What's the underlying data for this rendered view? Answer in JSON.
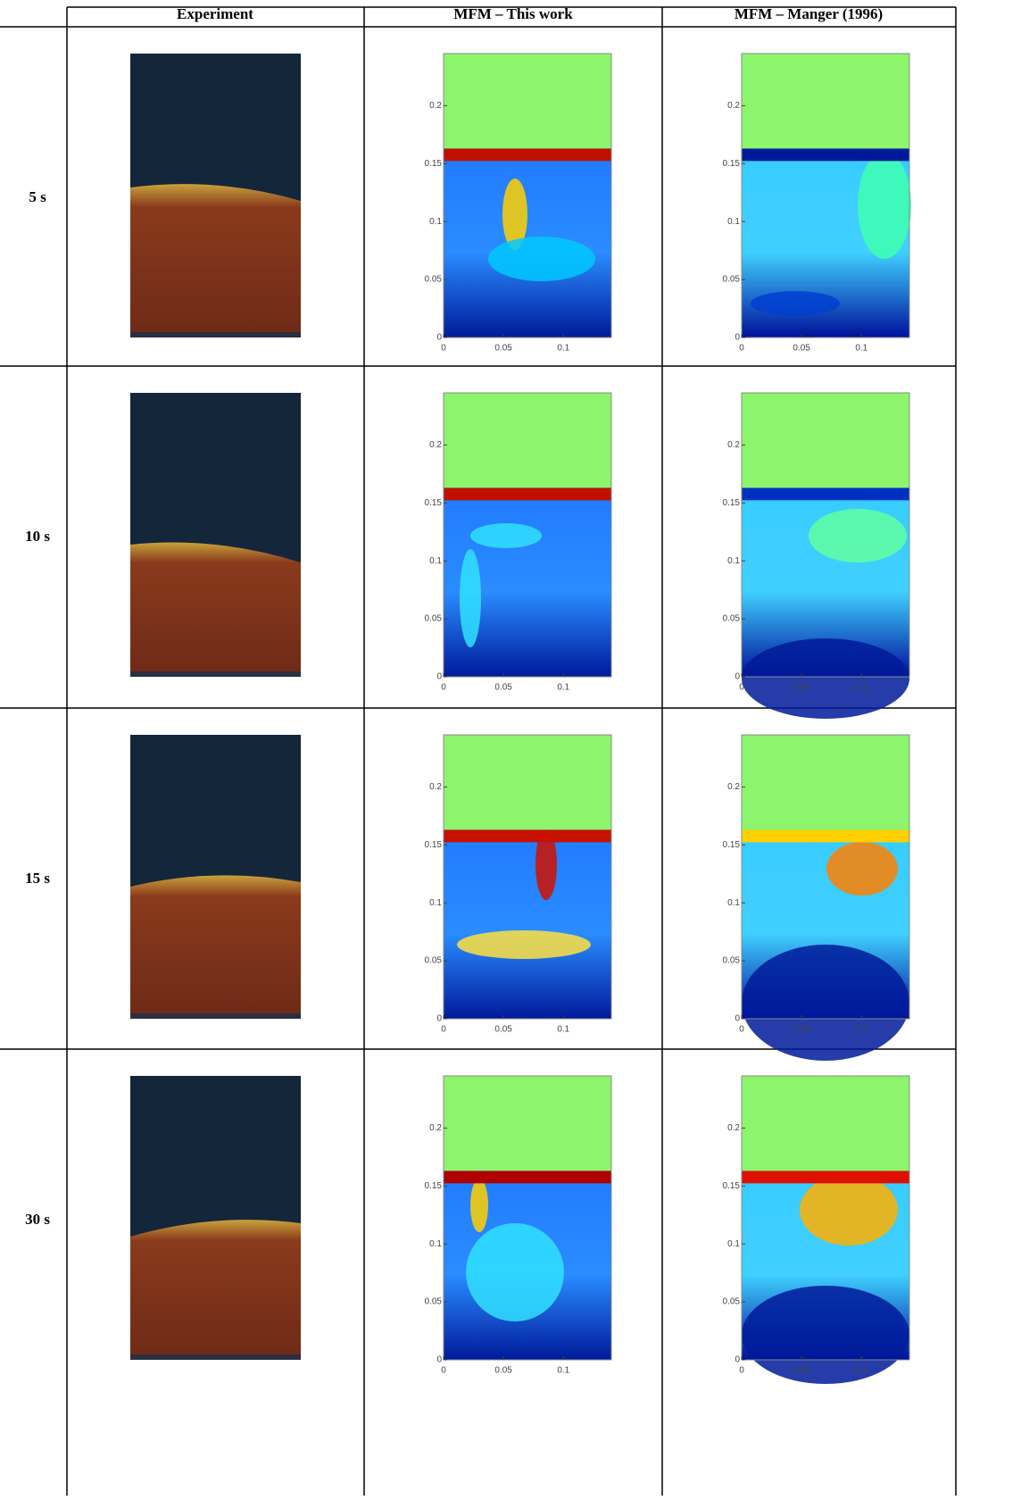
{
  "table": {
    "header": [
      "Experiment",
      "MFM – This work",
      "MFM – Manger (1996)"
    ],
    "rows": [
      {
        "label": "5 s"
      },
      {
        "label": "10 s"
      },
      {
        "label": "15 s"
      },
      {
        "label": "30 s"
      }
    ]
  },
  "plot_axes": {
    "xlim": [
      0,
      0.14
    ],
    "ylim": [
      0,
      0.245
    ],
    "xticks": [
      0,
      0.05,
      0.1
    ],
    "yticks": [
      0,
      0.05,
      0.1,
      0.15,
      0.2
    ]
  }
}
